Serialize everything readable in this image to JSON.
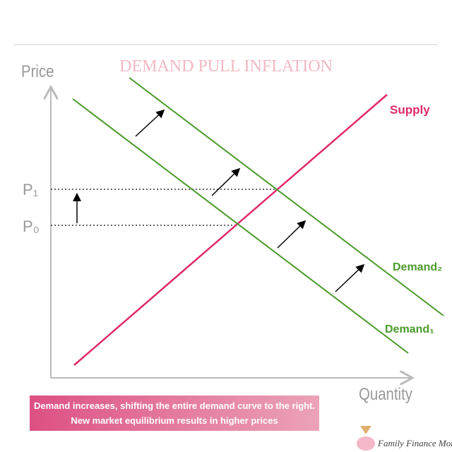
{
  "title": "DEMAND PULL INFLATION",
  "axes": {
    "y_label": "Price",
    "x_label": "Quantity"
  },
  "curves": {
    "supply": "Supply",
    "demand1": "Demand₁",
    "demand2": "Demand₂"
  },
  "prices": {
    "p1": "P₁",
    "p0": "P₀"
  },
  "caption": [
    "Demand increases, shifting the entire demand curve to the right.",
    "New market equilibrium results in higher prices"
  ],
  "brand": "Family Finance Mom"
}
